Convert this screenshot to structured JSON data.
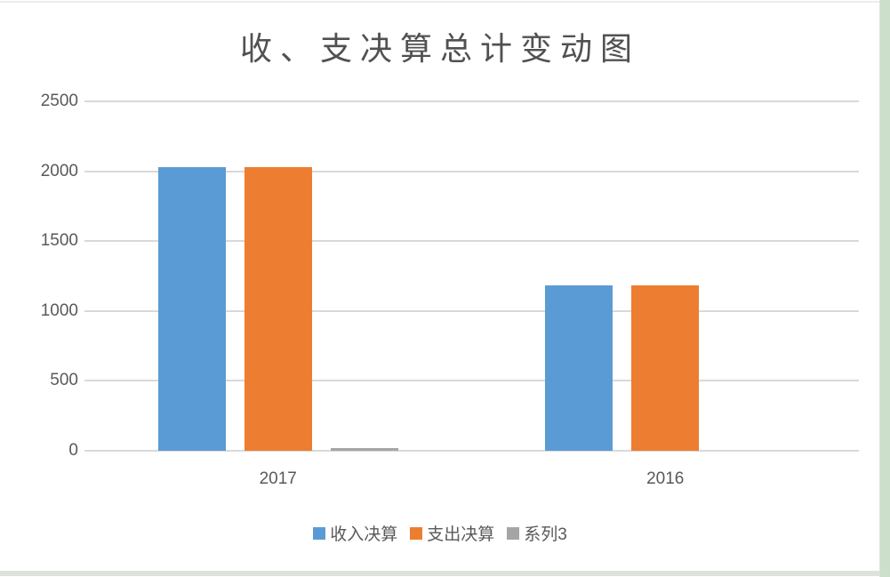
{
  "chart_data": {
    "type": "bar",
    "title": "收、支决算总计变动图",
    "categories": [
      "2017",
      "2016"
    ],
    "series": [
      {
        "name": "收入决算",
        "color": "#5B9BD5",
        "values": [
          2032,
          1186
        ]
      },
      {
        "name": "支出决算",
        "color": "#ED7D31",
        "values": [
          2032,
          1186
        ]
      },
      {
        "name": "系列3",
        "color": "#A5A5A5",
        "values": [
          18,
          0
        ]
      }
    ],
    "ylim": [
      0,
      2500
    ],
    "yticks": [
      0,
      500,
      1000,
      1500,
      2000,
      2500
    ],
    "xlabel": "",
    "ylabel": "",
    "grid": true,
    "legend_position": "bottom"
  },
  "colors": {
    "gridline": "#d9d9d9",
    "axis_text": "#595959",
    "title_text": "#515151",
    "frame_right": "#cbdfcb",
    "frame_bottom": "#dbe3da"
  }
}
